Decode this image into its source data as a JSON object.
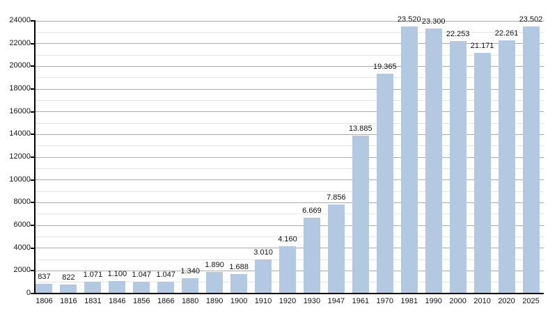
{
  "chart_data": {
    "type": "bar",
    "title": "",
    "xlabel": "",
    "ylabel": "",
    "categories": [
      "1806",
      "1816",
      "1831",
      "1846",
      "1856",
      "1866",
      "1880",
      "1890",
      "1900",
      "1910",
      "1920",
      "1930",
      "1947",
      "1961",
      "1970",
      "1981",
      "1990",
      "2000",
      "2010",
      "2020",
      "2025"
    ],
    "values": [
      837,
      822,
      1071,
      1100,
      1047,
      1047,
      1340,
      1890,
      1688,
      3010,
      4160,
      6669,
      7856,
      13885,
      19365,
      23520,
      23300,
      22253,
      21171,
      22261,
      23502
    ],
    "bar_labels": [
      "837",
      "822",
      "1.071",
      "1.100",
      "1.047",
      "1.047",
      "1.340",
      "1.890",
      "1.688",
      "3.010",
      "4.160",
      "6.669",
      "7.856",
      "13.885",
      "19.365",
      "23.520",
      "23.300",
      "22.253",
      "21.171",
      "22.261",
      "23.502"
    ],
    "y_tick_labels": [
      "0",
      "2000",
      "4000",
      "6000",
      "8000",
      "10000",
      "12000",
      "14000",
      "16000",
      "18000",
      "20000",
      "22000",
      "24000"
    ],
    "ylim": [
      0,
      24000
    ],
    "y_major_step": 2000,
    "y_minor_step": 1000,
    "grid": true,
    "legend": "none",
    "bar_color": "#b3c9e2",
    "axis_color": "#000000",
    "major_grid_color": "#aaaaaa",
    "minor_grid_color": "#e4e4e4",
    "text_color": "#111111"
  }
}
